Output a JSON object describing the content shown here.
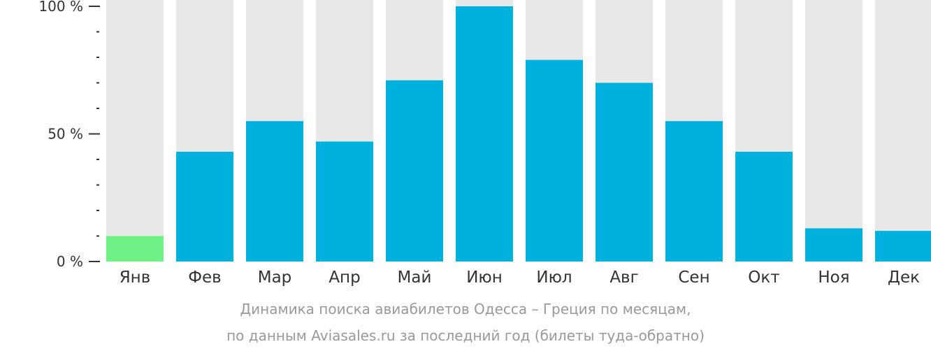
{
  "chart_data": {
    "type": "bar",
    "categories": [
      "Янв",
      "Фев",
      "Мар",
      "Апр",
      "Май",
      "Июн",
      "Июл",
      "Авг",
      "Сен",
      "Окт",
      "Ноя",
      "Дек"
    ],
    "values": [
      10,
      43,
      55,
      47,
      71,
      100,
      79,
      70,
      55,
      43,
      13,
      12
    ],
    "ylim": [
      0,
      100
    ],
    "yticks": [
      0,
      50,
      100
    ],
    "ytick_labels": [
      "0 %",
      "50 %",
      "100 %"
    ],
    "minor_ytick_step": 10,
    "title": "",
    "xlabel": "",
    "ylabel": "",
    "highlight_index": 0,
    "colors": {
      "bar": "#00b0dd",
      "highlight": "#6ef286",
      "background_bar": "#e8e8e8",
      "axis": "#333333"
    }
  },
  "caption": {
    "line1": "Динамика поиска авиабилетов Одесса – Греция по месяцам,",
    "line2": "по данным Aviasales.ru за последний год (билеты туда-обратно)"
  }
}
